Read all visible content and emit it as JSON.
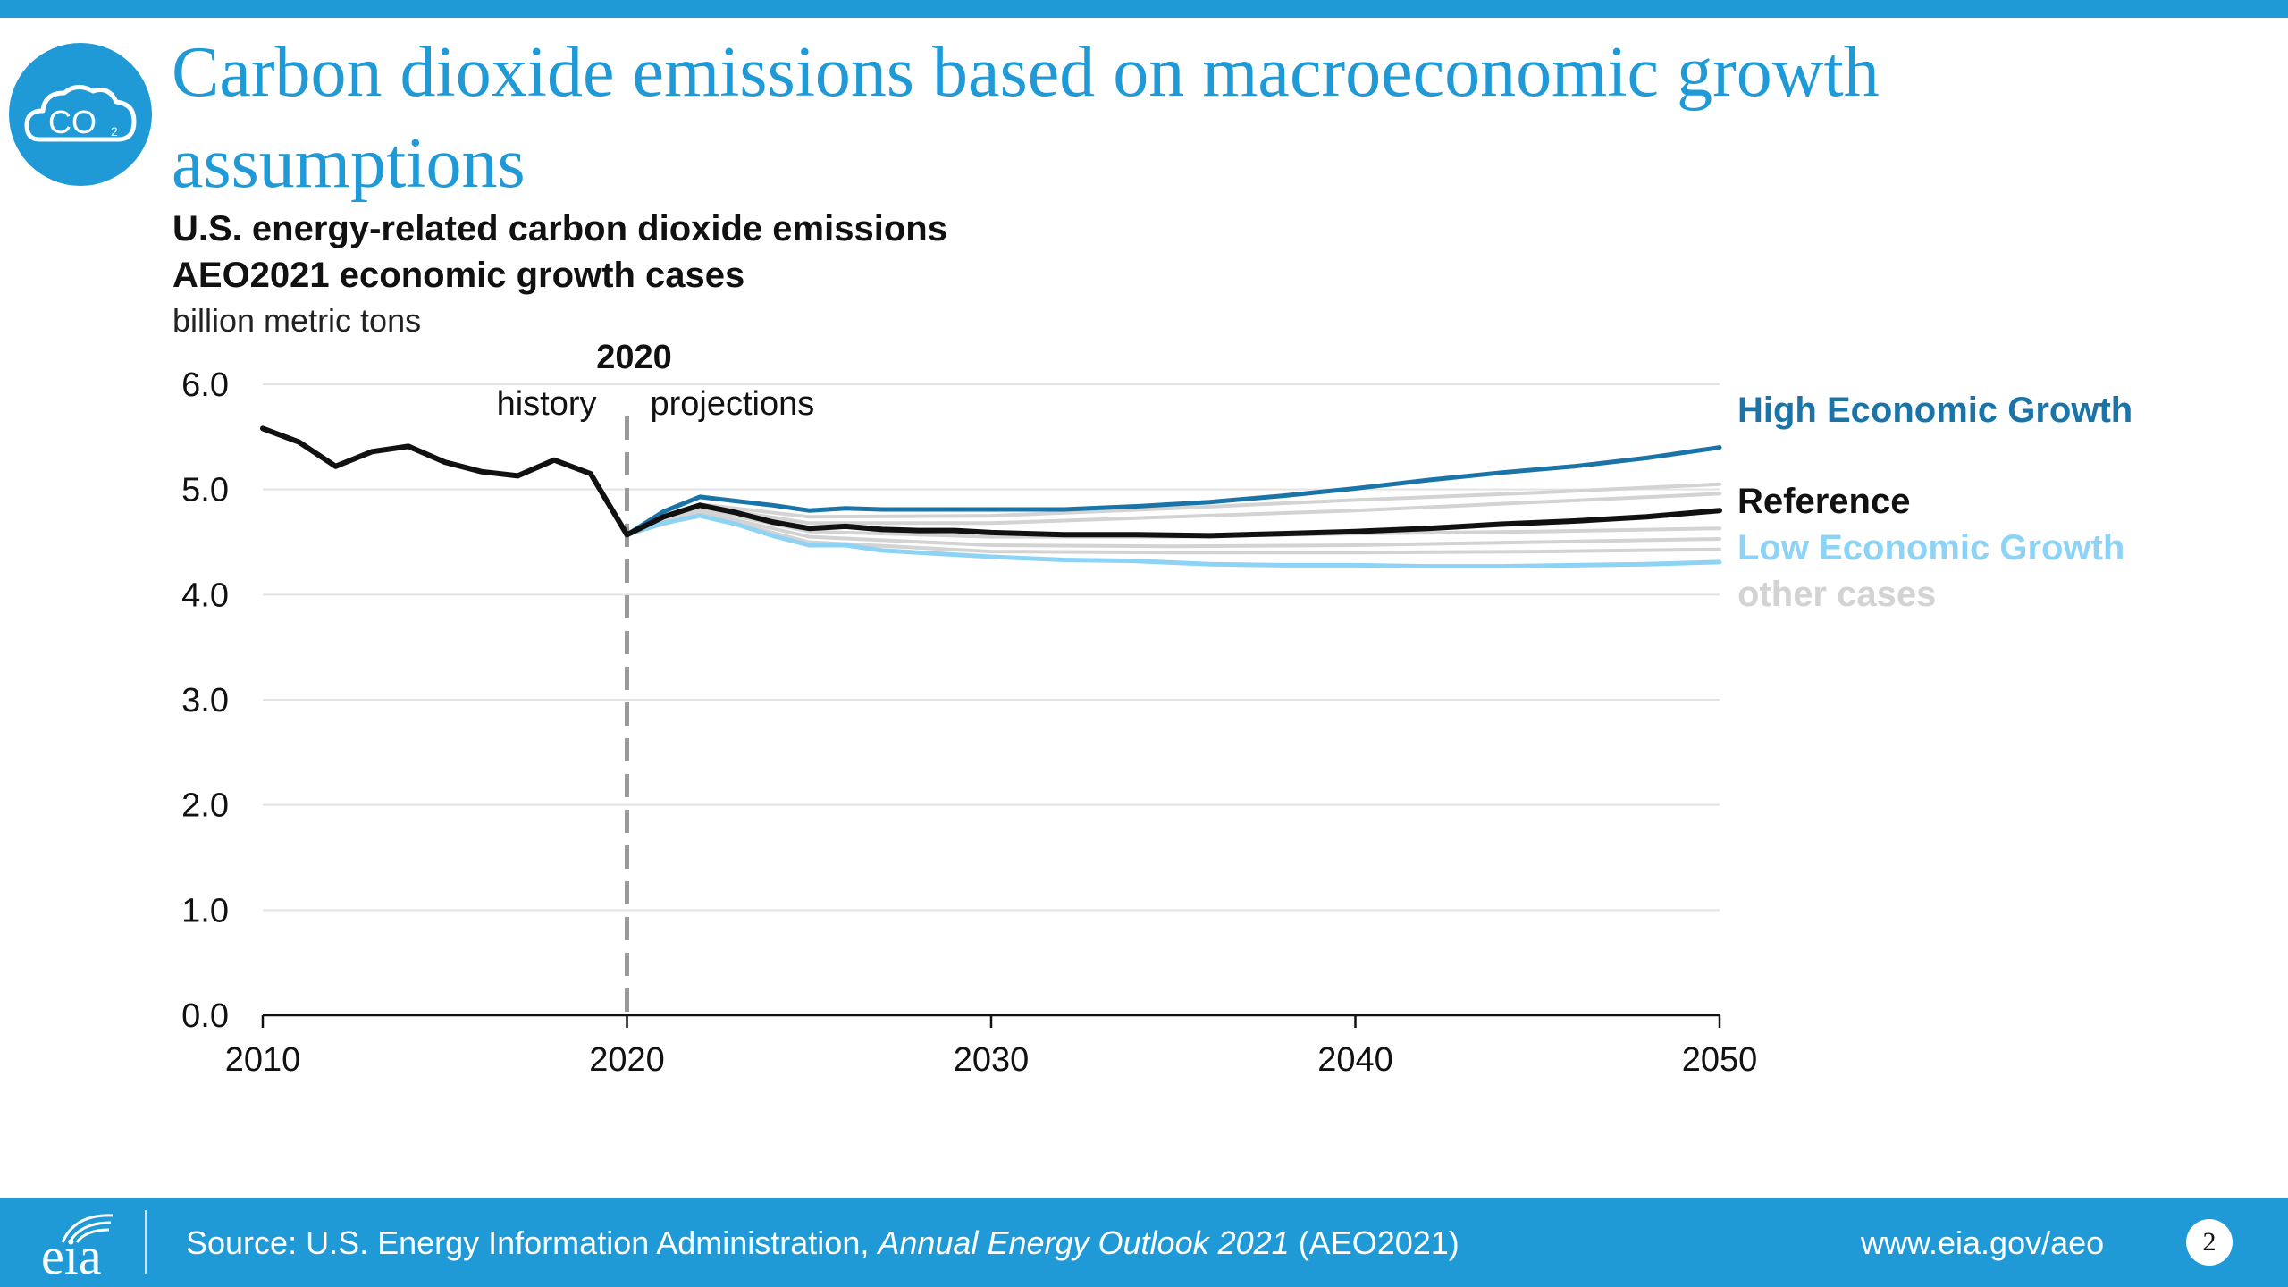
{
  "header": {
    "title": "Carbon dioxide emissions based on macroeconomic growth assumptions",
    "badge": {
      "icon": "co2-cloud-icon",
      "text": "CO",
      "subscript": "2"
    }
  },
  "chart_data": {
    "type": "line",
    "title": "U.S. energy-related carbon dioxide emissions",
    "subtitle": "AEO2021 economic growth cases",
    "ylabel": "billion metric tons",
    "xlim": [
      2010,
      2050
    ],
    "ylim": [
      0,
      6
    ],
    "xticks": [
      "2010",
      "2020",
      "2030",
      "2040",
      "2050"
    ],
    "yticks": [
      "0.0",
      "1.0",
      "2.0",
      "3.0",
      "4.0",
      "5.0",
      "6.0"
    ],
    "grid": true,
    "divider": {
      "x": 2020,
      "label": "2020",
      "left_label": "history",
      "right_label": "projections"
    },
    "legend_position": "right",
    "history": {
      "x": [
        2010,
        2011,
        2012,
        2013,
        2014,
        2015,
        2016,
        2017,
        2018,
        2019,
        2020
      ],
      "values": [
        5.58,
        5.45,
        5.22,
        5.36,
        5.41,
        5.26,
        5.17,
        5.13,
        5.28,
        5.15,
        4.57
      ]
    },
    "series": [
      {
        "name": "High Economic Growth",
        "color": "#1a74a8",
        "x": [
          2020,
          2021,
          2022,
          2023,
          2024,
          2025,
          2026,
          2027,
          2028,
          2029,
          2030,
          2032,
          2034,
          2036,
          2038,
          2040,
          2042,
          2044,
          2046,
          2048,
          2050
        ],
        "values": [
          4.57,
          4.79,
          4.93,
          4.89,
          4.85,
          4.8,
          4.82,
          4.81,
          4.81,
          4.81,
          4.81,
          4.81,
          4.84,
          4.88,
          4.94,
          5.01,
          5.09,
          5.16,
          5.22,
          5.3,
          5.4
        ]
      },
      {
        "name": "Reference",
        "color": "#111111",
        "x": [
          2020,
          2021,
          2022,
          2023,
          2024,
          2025,
          2026,
          2027,
          2028,
          2029,
          2030,
          2032,
          2034,
          2036,
          2038,
          2040,
          2042,
          2044,
          2046,
          2048,
          2050
        ],
        "values": [
          4.57,
          4.74,
          4.85,
          4.78,
          4.69,
          4.63,
          4.65,
          4.62,
          4.61,
          4.61,
          4.59,
          4.57,
          4.57,
          4.56,
          4.58,
          4.6,
          4.63,
          4.67,
          4.7,
          4.74,
          4.8
        ]
      },
      {
        "name": "Low Economic Growth",
        "color": "#8dd3f5",
        "x": [
          2020,
          2021,
          2022,
          2023,
          2024,
          2025,
          2026,
          2027,
          2028,
          2029,
          2030,
          2032,
          2034,
          2036,
          2038,
          2040,
          2042,
          2044,
          2046,
          2048,
          2050
        ],
        "values": [
          4.57,
          4.68,
          4.75,
          4.67,
          4.56,
          4.47,
          4.47,
          4.42,
          4.4,
          4.38,
          4.36,
          4.33,
          4.32,
          4.29,
          4.28,
          4.28,
          4.27,
          4.27,
          4.28,
          4.29,
          4.31
        ]
      }
    ],
    "other_cases": {
      "name": "other cases",
      "color": "#d3d3d3",
      "x": [
        2020,
        2022,
        2025,
        2030,
        2035,
        2040,
        2045,
        2050
      ],
      "lines": [
        [
          4.57,
          4.86,
          4.74,
          4.75,
          4.82,
          4.9,
          4.97,
          5.05
        ],
        [
          4.57,
          4.84,
          4.68,
          4.68,
          4.74,
          4.8,
          4.88,
          4.96
        ],
        [
          4.57,
          4.82,
          4.6,
          4.55,
          4.55,
          4.58,
          4.6,
          4.63
        ],
        [
          4.57,
          4.79,
          4.55,
          4.47,
          4.46,
          4.47,
          4.5,
          4.53
        ],
        [
          4.57,
          4.77,
          4.5,
          4.41,
          4.4,
          4.4,
          4.41,
          4.43
        ]
      ]
    }
  },
  "footer": {
    "logo_text": "eia",
    "source_prefix": "Source: U.S. Energy Information Administration, ",
    "source_italic": "Annual Energy Outlook 2021",
    "source_suffix": " (AEO2021)",
    "url": "www.eia.gov/aeo",
    "page_number": "2"
  }
}
